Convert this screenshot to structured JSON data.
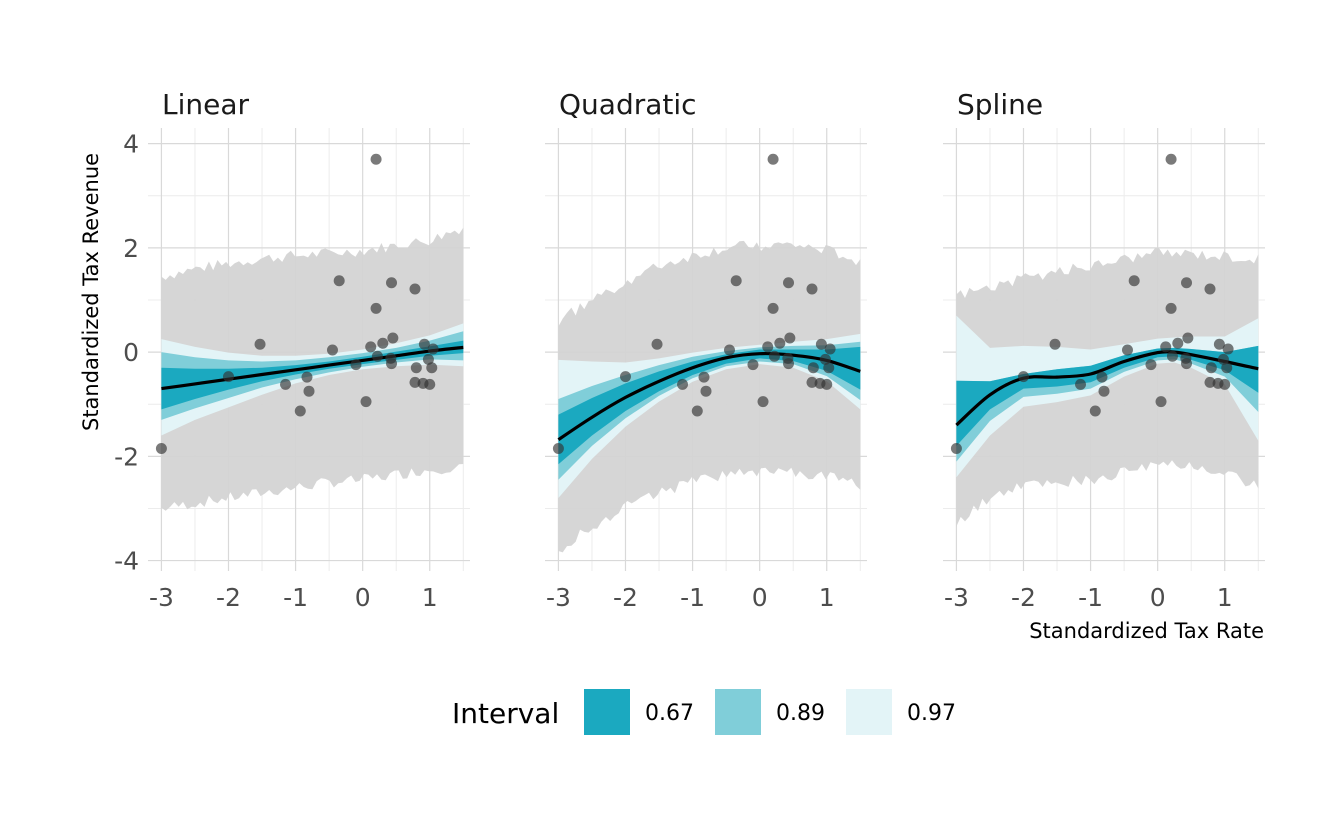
{
  "colors": {
    "i67": "#1ba9c0",
    "i89": "#80ced9",
    "i97": "#e3f4f7",
    "predictive": "#d4d4d4",
    "point": "#333333",
    "line": "#000000",
    "grid": "#d9d9d9"
  },
  "chart_data": {
    "type": "line",
    "xlabel": "Standardized Tax Rate",
    "ylabel": "Standardized Tax Revenue",
    "xlim": [
      -3.2,
      1.6
    ],
    "ylim": [
      -4.2,
      4.3
    ],
    "x_ticks": [
      -3,
      -2,
      -1,
      0,
      1
    ],
    "x_tick_labels": [
      "-3",
      "-2",
      "-1",
      "0",
      "1"
    ],
    "y_ticks": [
      -4,
      -2,
      0,
      2,
      4
    ],
    "y_tick_labels": [
      "-4",
      "-2",
      "0",
      "2",
      "4"
    ],
    "grid": true,
    "legend": {
      "title": "Interval",
      "position": "bottom",
      "entries": [
        {
          "label": "0.67",
          "color_key": "i67"
        },
        {
          "label": "0.89",
          "color_key": "i89"
        },
        {
          "label": "0.97",
          "color_key": "i97"
        }
      ]
    },
    "points": [
      [
        -3.0,
        -1.85
      ],
      [
        -2.0,
        -0.47
      ],
      [
        -1.53,
        0.15
      ],
      [
        -1.15,
        -0.62
      ],
      [
        -0.93,
        -1.13
      ],
      [
        -0.83,
        -0.48
      ],
      [
        -0.8,
        -0.75
      ],
      [
        -0.45,
        0.04
      ],
      [
        -0.35,
        1.37
      ],
      [
        -0.1,
        -0.24
      ],
      [
        0.05,
        -0.95
      ],
      [
        0.12,
        0.1
      ],
      [
        0.2,
        0.84
      ],
      [
        0.2,
        3.7
      ],
      [
        0.22,
        -0.08
      ],
      [
        0.3,
        0.17
      ],
      [
        0.42,
        -0.12
      ],
      [
        0.43,
        -0.22
      ],
      [
        0.43,
        1.33
      ],
      [
        0.45,
        0.27
      ],
      [
        0.78,
        1.21
      ],
      [
        0.78,
        -0.58
      ],
      [
        0.8,
        -0.3
      ],
      [
        0.9,
        -0.6
      ],
      [
        0.92,
        0.15
      ],
      [
        0.98,
        -0.14
      ],
      [
        1.0,
        -0.62
      ],
      [
        1.03,
        -0.3
      ],
      [
        1.05,
        0.06
      ]
    ],
    "panels": [
      {
        "title": "Linear",
        "fit": {
          "x": [
            -3.0,
            -2.5,
            -2.0,
            -1.5,
            -1.0,
            -0.5,
            0.0,
            0.5,
            1.0,
            1.5
          ],
          "y": [
            -0.7,
            -0.61,
            -0.52,
            -0.43,
            -0.34,
            -0.25,
            -0.16,
            -0.07,
            0.02,
            0.09
          ]
        },
        "bands": {
          "i67": {
            "lo": [
              -1.1,
              -0.9,
              -0.72,
              -0.56,
              -0.43,
              -0.32,
              -0.23,
              -0.15,
              -0.07,
              -0.02
            ],
            "hi": [
              -0.3,
              -0.32,
              -0.32,
              -0.3,
              -0.25,
              -0.18,
              -0.09,
              0.01,
              0.11,
              0.22
            ]
          },
          "i89": {
            "lo": [
              -1.3,
              -1.08,
              -0.88,
              -0.68,
              -0.52,
              -0.39,
              -0.28,
              -0.2,
              -0.14,
              -0.16
            ],
            "hi": [
              0.0,
              -0.1,
              -0.16,
              -0.18,
              -0.16,
              -0.1,
              -0.02,
              0.08,
              0.22,
              0.4
            ]
          },
          "i97": {
            "lo": [
              -1.6,
              -1.3,
              -1.06,
              -0.82,
              -0.6,
              -0.44,
              -0.33,
              -0.27,
              -0.24,
              -0.27
            ],
            "hi": [
              0.25,
              0.1,
              -0.01,
              -0.07,
              -0.07,
              -0.03,
              0.05,
              0.17,
              0.32,
              0.55
            ]
          },
          "predictive": {
            "lo": [
              -3.0,
              -2.9,
              -2.8,
              -2.7,
              -2.6,
              -2.5,
              -2.45,
              -2.35,
              -2.25,
              -2.2
            ],
            "hi": [
              1.45,
              1.6,
              1.7,
              1.8,
              1.85,
              1.9,
              1.95,
              2.05,
              2.15,
              2.4
            ]
          }
        }
      },
      {
        "title": "Quadratic",
        "fit": {
          "x": [
            -3.0,
            -2.5,
            -2.0,
            -1.5,
            -1.0,
            -0.5,
            0.0,
            0.5,
            1.0,
            1.5
          ],
          "y": [
            -1.68,
            -1.25,
            -0.87,
            -0.56,
            -0.3,
            -0.11,
            -0.03,
            -0.06,
            -0.16,
            -0.37
          ]
        },
        "bands": {
          "i67": {
            "lo": [
              -2.15,
              -1.6,
              -1.13,
              -0.75,
              -0.44,
              -0.22,
              -0.12,
              -0.17,
              -0.36,
              -0.72
            ],
            "hi": [
              -1.2,
              -0.88,
              -0.6,
              -0.37,
              -0.18,
              -0.04,
              0.05,
              0.05,
              0.05,
              0.1
            ]
          },
          "i89": {
            "lo": [
              -2.45,
              -1.8,
              -1.27,
              -0.84,
              -0.5,
              -0.27,
              -0.18,
              -0.23,
              -0.46,
              -0.92
            ],
            "hi": [
              -0.9,
              -0.65,
              -0.44,
              -0.25,
              -0.09,
              0.02,
              0.09,
              0.12,
              0.13,
              0.2
            ]
          },
          "i97": {
            "lo": [
              -2.8,
              -2.05,
              -1.43,
              -0.95,
              -0.57,
              -0.33,
              -0.23,
              -0.3,
              -0.56,
              -1.1
            ],
            "hi": [
              -0.15,
              -0.18,
              -0.2,
              -0.12,
              -0.01,
              0.08,
              0.14,
              0.2,
              0.25,
              0.35
            ]
          },
          "predictive": {
            "lo": [
              -3.8,
              -3.35,
              -2.95,
              -2.7,
              -2.5,
              -2.35,
              -2.3,
              -2.3,
              -2.4,
              -2.55
            ],
            "hi": [
              0.6,
              1.0,
              1.35,
              1.65,
              1.85,
              2.0,
              2.05,
              2.05,
              1.95,
              1.75
            ]
          }
        }
      },
      {
        "title": "Spline",
        "fit": {
          "x": [
            -3.0,
            -2.5,
            -2.0,
            -1.5,
            -1.0,
            -0.5,
            0.0,
            0.25,
            0.5,
            1.0,
            1.5
          ],
          "y": [
            -1.4,
            -0.82,
            -0.5,
            -0.48,
            -0.42,
            -0.18,
            -0.01,
            0.0,
            -0.05,
            -0.18,
            -0.32
          ]
        },
        "bands": {
          "i67": {
            "lo": [
              -1.8,
              -1.1,
              -0.7,
              -0.66,
              -0.58,
              -0.3,
              -0.1,
              -0.08,
              -0.15,
              -0.35,
              -0.78
            ],
            "hi": [
              -0.55,
              -0.56,
              -0.42,
              -0.33,
              -0.26,
              -0.06,
              0.07,
              0.08,
              0.06,
              0.0,
              0.12
            ]
          },
          "i89": {
            "lo": [
              -2.1,
              -1.32,
              -0.86,
              -0.8,
              -0.7,
              -0.38,
              -0.16,
              -0.14,
              -0.22,
              -0.47,
              -1.15
            ]
          },
          "i97": {
            "lo": [
              -2.4,
              -1.6,
              -1.05,
              -0.96,
              -0.83,
              -0.47,
              -0.22,
              -0.2,
              -0.3,
              -0.62,
              -1.7
            ],
            "hi": [
              0.7,
              0.08,
              0.12,
              0.1,
              0.05,
              0.15,
              0.26,
              0.28,
              0.3,
              0.3,
              0.65
            ]
          },
          "predictive": {
            "lo": [
              -3.3,
              -2.8,
              -2.55,
              -2.5,
              -2.45,
              -2.3,
              -2.2,
              -2.15,
              -2.2,
              -2.3,
              -2.6
            ],
            "hi": [
              1.1,
              1.25,
              1.4,
              1.55,
              1.65,
              1.8,
              1.9,
              1.9,
              1.9,
              1.85,
              1.8
            ]
          }
        }
      }
    ]
  }
}
